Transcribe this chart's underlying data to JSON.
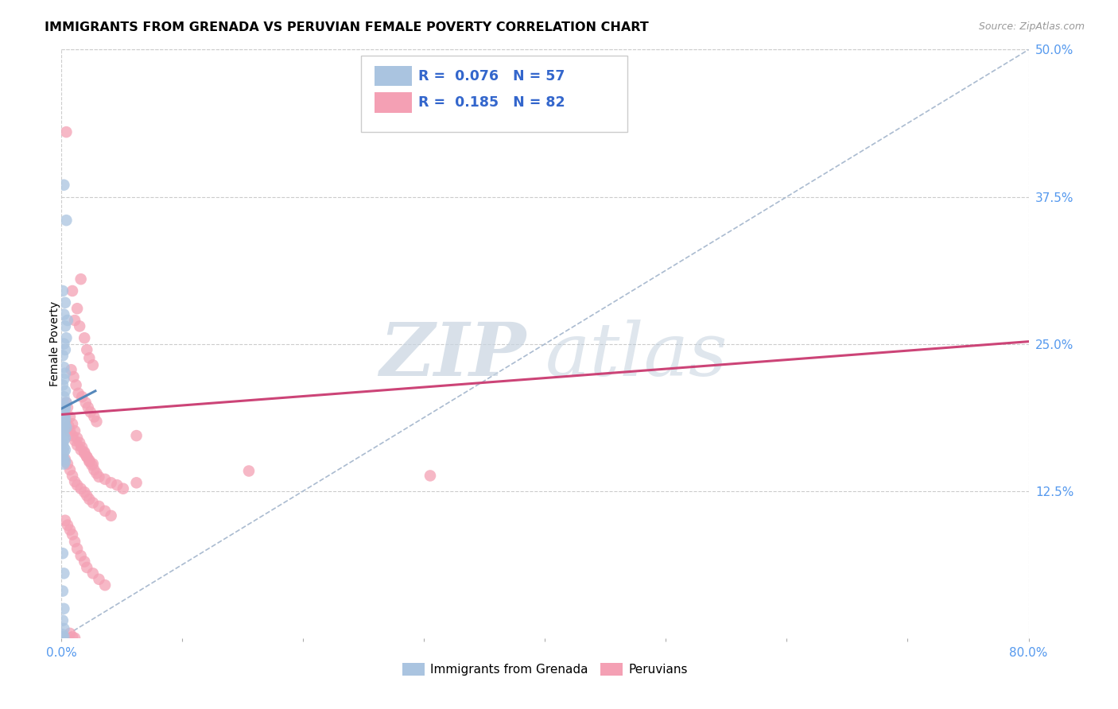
{
  "title": "IMMIGRANTS FROM GRENADA VS PERUVIAN FEMALE POVERTY CORRELATION CHART",
  "source": "Source: ZipAtlas.com",
  "ylabel": "Female Poverty",
  "x_min": 0.0,
  "x_max": 0.8,
  "y_min": 0.0,
  "y_max": 0.5,
  "y_ticks_right": [
    0.125,
    0.25,
    0.375,
    0.5
  ],
  "y_tick_labels_right": [
    "12.5%",
    "25.0%",
    "37.5%",
    "50.0%"
  ],
  "legend_label1": "Immigrants from Grenada",
  "legend_label2": "Peruvians",
  "R1": "0.076",
  "N1": "57",
  "R2": "0.185",
  "N2": "82",
  "color1": "#aac4e0",
  "color2": "#f4a0b4",
  "line_color1": "#5588bb",
  "line_color2": "#cc4477",
  "diag_line_color": "#aabbd0",
  "watermark_zip": "ZIP",
  "watermark_atlas": "atlas",
  "scatter1_x": [
    0.002,
    0.004,
    0.001,
    0.003,
    0.002,
    0.005,
    0.003,
    0.004,
    0.002,
    0.003,
    0.001,
    0.002,
    0.003,
    0.002,
    0.001,
    0.003,
    0.002,
    0.004,
    0.003,
    0.002,
    0.001,
    0.002,
    0.003,
    0.002,
    0.001,
    0.002,
    0.003,
    0.004,
    0.003,
    0.002,
    0.001,
    0.002,
    0.003,
    0.002,
    0.001,
    0.002,
    0.001,
    0.002,
    0.003,
    0.002,
    0.001,
    0.002,
    0.003,
    0.002,
    0.001,
    0.002,
    0.003,
    0.002,
    0.001,
    0.002,
    0.001,
    0.002,
    0.001,
    0.002,
    0.001,
    0.002,
    0.001
  ],
  "scatter1_y": [
    0.385,
    0.355,
    0.295,
    0.285,
    0.275,
    0.27,
    0.265,
    0.255,
    0.25,
    0.245,
    0.24,
    0.23,
    0.225,
    0.22,
    0.215,
    0.21,
    0.205,
    0.2,
    0.197,
    0.195,
    0.192,
    0.19,
    0.188,
    0.186,
    0.185,
    0.183,
    0.181,
    0.179,
    0.195,
    0.192,
    0.19,
    0.188,
    0.185,
    0.182,
    0.18,
    0.178,
    0.175,
    0.172,
    0.17,
    0.168,
    0.165,
    0.162,
    0.16,
    0.158,
    0.155,
    0.152,
    0.15,
    0.148,
    0.072,
    0.055,
    0.04,
    0.025,
    0.015,
    0.008,
    0.003,
    0.001,
    0.0
  ],
  "scatter2_x": [
    0.004,
    0.016,
    0.009,
    0.013,
    0.011,
    0.015,
    0.019,
    0.021,
    0.023,
    0.026,
    0.008,
    0.01,
    0.012,
    0.014,
    0.017,
    0.02,
    0.022,
    0.024,
    0.027,
    0.029,
    0.006,
    0.007,
    0.009,
    0.011,
    0.013,
    0.016,
    0.019,
    0.021,
    0.023,
    0.026,
    0.004,
    0.005,
    0.007,
    0.009,
    0.011,
    0.013,
    0.015,
    0.017,
    0.019,
    0.021,
    0.023,
    0.025,
    0.027,
    0.029,
    0.031,
    0.036,
    0.041,
    0.046,
    0.051,
    0.062,
    0.003,
    0.005,
    0.007,
    0.009,
    0.011,
    0.013,
    0.016,
    0.019,
    0.021,
    0.023,
    0.026,
    0.031,
    0.036,
    0.041,
    0.062,
    0.305,
    0.003,
    0.005,
    0.007,
    0.009,
    0.011,
    0.013,
    0.016,
    0.019,
    0.021,
    0.026,
    0.031,
    0.036,
    0.155,
    0.007,
    0.009,
    0.011
  ],
  "scatter2_y": [
    0.43,
    0.305,
    0.295,
    0.28,
    0.27,
    0.265,
    0.255,
    0.245,
    0.238,
    0.232,
    0.228,
    0.222,
    0.215,
    0.208,
    0.205,
    0.2,
    0.196,
    0.192,
    0.188,
    0.184,
    0.18,
    0.176,
    0.172,
    0.168,
    0.164,
    0.16,
    0.157,
    0.154,
    0.151,
    0.148,
    0.2,
    0.196,
    0.188,
    0.182,
    0.176,
    0.17,
    0.166,
    0.162,
    0.158,
    0.154,
    0.15,
    0.147,
    0.143,
    0.14,
    0.137,
    0.135,
    0.132,
    0.13,
    0.127,
    0.172,
    0.152,
    0.148,
    0.143,
    0.138,
    0.133,
    0.13,
    0.127,
    0.124,
    0.121,
    0.118,
    0.115,
    0.112,
    0.108,
    0.104,
    0.132,
    0.138,
    0.1,
    0.096,
    0.092,
    0.088,
    0.082,
    0.076,
    0.07,
    0.065,
    0.06,
    0.055,
    0.05,
    0.045,
    0.142,
    0.004,
    0.001,
    0.0
  ]
}
